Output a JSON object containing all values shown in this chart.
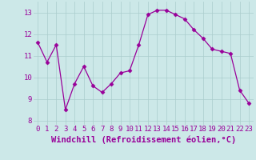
{
  "x": [
    0,
    1,
    2,
    3,
    4,
    5,
    6,
    7,
    8,
    9,
    10,
    11,
    12,
    13,
    14,
    15,
    16,
    17,
    18,
    19,
    20,
    21,
    22,
    23
  ],
  "y": [
    11.6,
    10.7,
    11.5,
    8.5,
    9.7,
    10.5,
    9.6,
    9.3,
    9.7,
    10.2,
    10.3,
    11.5,
    12.9,
    13.1,
    13.1,
    12.9,
    12.7,
    12.2,
    11.8,
    11.3,
    11.2,
    11.1,
    9.4,
    8.8
  ],
  "line_color": "#990099",
  "marker": "D",
  "marker_size": 2.5,
  "bg_color": "#cce8e8",
  "grid_color": "#aacccc",
  "xlabel": "Windchill (Refroidissement éolien,°C)",
  "xlabel_color": "#990099",
  "xlabel_fontsize": 7.5,
  "tick_color": "#990099",
  "tick_fontsize": 6.5,
  "ylim": [
    7.8,
    13.5
  ],
  "yticks": [
    8,
    9,
    10,
    11,
    12,
    13
  ],
  "xticks": [
    0,
    1,
    2,
    3,
    4,
    5,
    6,
    7,
    8,
    9,
    10,
    11,
    12,
    13,
    14,
    15,
    16,
    17,
    18,
    19,
    20,
    21,
    22,
    23
  ]
}
